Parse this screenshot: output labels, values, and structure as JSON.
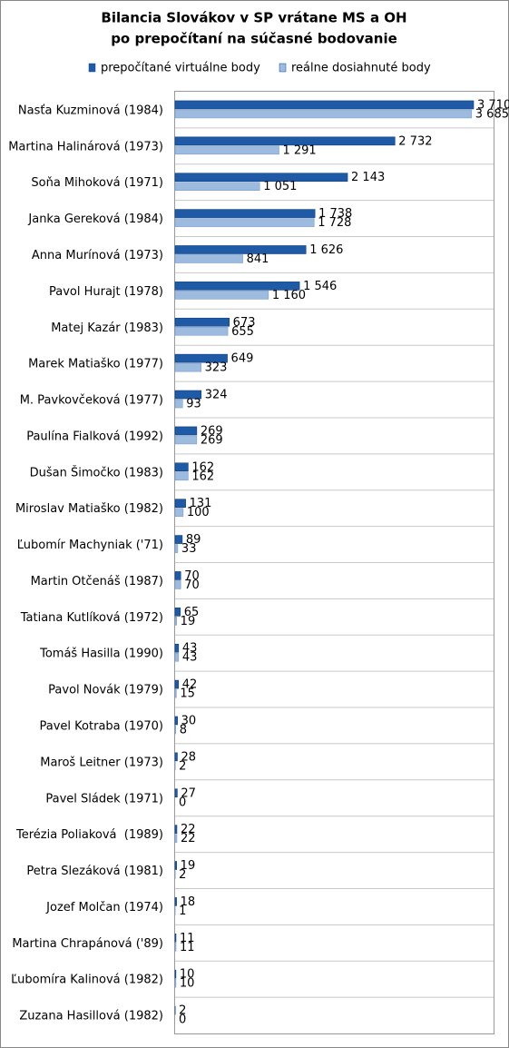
{
  "chart_data": {
    "type": "hbar",
    "title": "Bilancia Slovákov v SP vrátane MS a OH",
    "subtitle": "po prepočítaní na súčasné bodovanie",
    "categories": [
      "Nasťa Kuzminová (1984)",
      "Martina Halinárová (1973)",
      "Soňa Mihoková (1971)",
      "Janka Gereková (1984)",
      "Anna Murínová (1973)",
      "Pavol Hurajt (1978)",
      "Matej Kazár (1983)",
      "Marek Matiaško (1977)",
      "M. Pavkovčeková (1977)",
      "Paulína Fialková (1992)",
      "Dušan Šimočko (1983)",
      "Miroslav Matiaško (1982)",
      "Ľubomír Machyniak ('71)",
      "Martin Otčenáš (1987)",
      "Tatiana Kutlíková (1972)",
      "Tomáš Hasilla (1990)",
      "Pavol Novák (1979)",
      "Pavel Kotraba (1970)",
      "Maroš Leitner (1973)",
      "Pavel Sládek (1971)",
      "Terézia Poliaková  (1989)",
      "Petra Slezáková (1981)",
      "Jozef Molčan (1974)",
      "Martina Chrapánová ('89)",
      "Ľubomíra Kalinová (1982)",
      "Zuzana Hasillová (1982)"
    ],
    "series": [
      {
        "name": "prepočítané virtuálne body",
        "color": "#1f5aa6",
        "values": [
          3710,
          2732,
          2143,
          1738,
          1626,
          1546,
          673,
          649,
          324,
          269,
          162,
          131,
          89,
          70,
          65,
          43,
          42,
          30,
          28,
          27,
          22,
          19,
          18,
          11,
          10,
          2
        ],
        "value_labels": [
          "3 710",
          "2 732",
          "2 143",
          "1 738",
          "1 626",
          "1 546",
          "673",
          "649",
          "324",
          "269",
          "162",
          "131",
          "89",
          "70",
          "65",
          "43",
          "42",
          "30",
          "28",
          "27",
          "22",
          "19",
          "18",
          "11",
          "10",
          "2"
        ]
      },
      {
        "name": "reálne dosiahnuté body",
        "color": "#9dbbdf",
        "values": [
          3685,
          1291,
          1051,
          1728,
          841,
          1160,
          655,
          323,
          93,
          269,
          162,
          100,
          33,
          70,
          19,
          43,
          15,
          8,
          2,
          0,
          22,
          2,
          1,
          11,
          10,
          0
        ],
        "value_labels": [
          "3 685",
          "1 291",
          "1 051",
          "1 728",
          "841",
          "1 160",
          "655",
          "323",
          "93",
          "269",
          "162",
          "100",
          "33",
          "70",
          "19",
          "43",
          "15",
          "8",
          "2",
          "0",
          "22",
          "2",
          "1",
          "11",
          "10",
          "0"
        ]
      }
    ],
    "legend": "top",
    "grid": true
  }
}
